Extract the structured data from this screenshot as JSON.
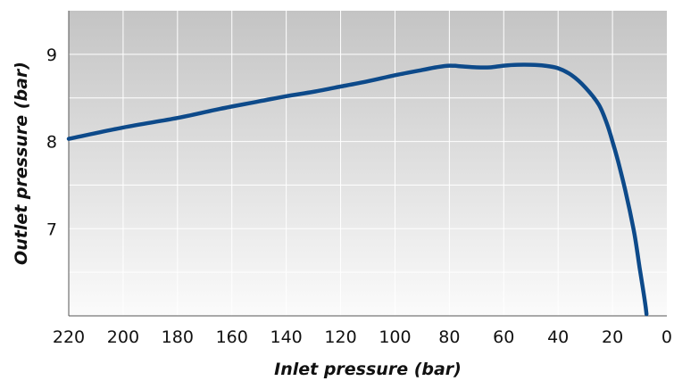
{
  "chart_data": {
    "type": "line",
    "title": "",
    "xlabel": "Inlet pressure (bar)",
    "ylabel": "Outlet pressure (bar)",
    "x_reversed": true,
    "xlim": [
      220,
      0
    ],
    "ylim": [
      6,
      9.5
    ],
    "grid": true,
    "x_ticks": [
      "220",
      "200",
      "180",
      "160",
      "140",
      "120",
      "100",
      "80",
      "60",
      "40",
      "20",
      "0"
    ],
    "y_ticks": [
      "7",
      "8",
      "9"
    ],
    "series": [
      {
        "color": "#0d4a8a",
        "x": [
          220,
          200,
          180,
          165,
          150,
          140,
          130,
          120,
          110,
          100,
          90,
          85,
          80,
          75,
          70,
          65,
          60,
          55,
          50,
          45,
          40,
          35,
          30,
          25,
          22,
          20,
          18,
          15,
          12,
          10,
          8,
          7.5
        ],
        "y": [
          8.03,
          8.16,
          8.27,
          8.37,
          8.46,
          8.52,
          8.57,
          8.63,
          8.69,
          8.76,
          8.82,
          8.85,
          8.87,
          8.86,
          8.85,
          8.85,
          8.87,
          8.88,
          8.88,
          8.87,
          8.84,
          8.76,
          8.62,
          8.42,
          8.2,
          8.0,
          7.78,
          7.4,
          6.95,
          6.55,
          6.15,
          6.02
        ]
      }
    ]
  }
}
